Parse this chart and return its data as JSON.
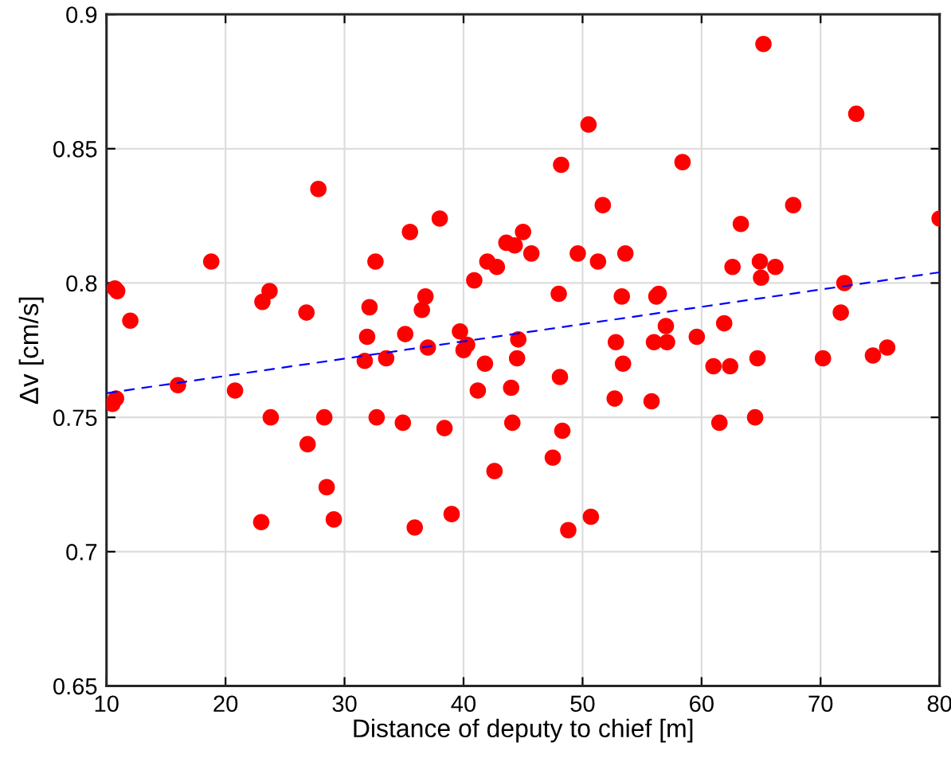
{
  "chart_data": {
    "type": "scatter",
    "xlabel": "Distance of deputy to chief [m]",
    "ylabel": "Δv [cm/s]",
    "xlim": [
      10,
      80
    ],
    "ylim": [
      0.65,
      0.9
    ],
    "xticks": [
      10,
      20,
      30,
      40,
      50,
      60,
      70,
      80
    ],
    "yticks": [
      0.65,
      0.7,
      0.75,
      0.8,
      0.85,
      0.9
    ],
    "grid": true,
    "marker": "circle",
    "series": [
      {
        "color": "#ff0000",
        "x": [
          10.5,
          10.8,
          10.7,
          10.9,
          12,
          16,
          18.8,
          20.8,
          23,
          23.1,
          23.7,
          23.8,
          26.8,
          26.9,
          27.8,
          28.3,
          28.5,
          29.1,
          31.7,
          31.9,
          32.1,
          32.6,
          32.7,
          33.5,
          34.9,
          35.1,
          35.5,
          35.9,
          36.5,
          36.8,
          37,
          38,
          38.4,
          39,
          39.7,
          40,
          40.3,
          40.9,
          41.2,
          41.8,
          42,
          42.6,
          42.8,
          43.6,
          44,
          44.1,
          44.5,
          44.3,
          44.6,
          45,
          45.7,
          47.5,
          48.1,
          48,
          48.2,
          48.3,
          48.8,
          49.6,
          50.5,
          50.7,
          51.3,
          51.7,
          52.7,
          52.8,
          53.3,
          53.4,
          53.6,
          55.8,
          56,
          56.2,
          56.4,
          57,
          57.1,
          58.4,
          59.6,
          61,
          61.5,
          61.9,
          62.4,
          62.6,
          63.3,
          64.5,
          64.7,
          64.9,
          65,
          65.2,
          66.2,
          67.7,
          70.2,
          71.7,
          72,
          73,
          74.4,
          75.6,
          80
        ],
        "values": [
          0.755,
          0.757,
          0.798,
          0.797,
          0.786,
          0.762,
          0.808,
          0.76,
          0.711,
          0.793,
          0.797,
          0.75,
          0.789,
          0.74,
          0.835,
          0.75,
          0.724,
          0.712,
          0.771,
          0.78,
          0.791,
          0.808,
          0.75,
          0.772,
          0.748,
          0.781,
          0.819,
          0.709,
          0.79,
          0.795,
          0.776,
          0.824,
          0.746,
          0.714,
          0.782,
          0.775,
          0.777,
          0.801,
          0.76,
          0.77,
          0.808,
          0.73,
          0.806,
          0.815,
          0.761,
          0.748,
          0.772,
          0.814,
          0.779,
          0.819,
          0.811,
          0.735,
          0.765,
          0.796,
          0.844,
          0.745,
          0.708,
          0.811,
          0.859,
          0.713,
          0.808,
          0.829,
          0.757,
          0.778,
          0.795,
          0.77,
          0.811,
          0.756,
          0.778,
          0.795,
          0.796,
          0.784,
          0.778,
          0.845,
          0.78,
          0.769,
          0.748,
          0.785,
          0.769,
          0.806,
          0.822,
          0.75,
          0.772,
          0.808,
          0.802,
          0.889,
          0.806,
          0.829,
          0.772,
          0.789,
          0.8,
          0.863,
          0.773,
          0.776,
          0.824
        ]
      },
      {
        "type": "line",
        "color": "#0000ff",
        "line_style": "dashed",
        "marker": "none",
        "x": [
          10,
          80
        ],
        "values": [
          0.759,
          0.804
        ]
      }
    ]
  }
}
